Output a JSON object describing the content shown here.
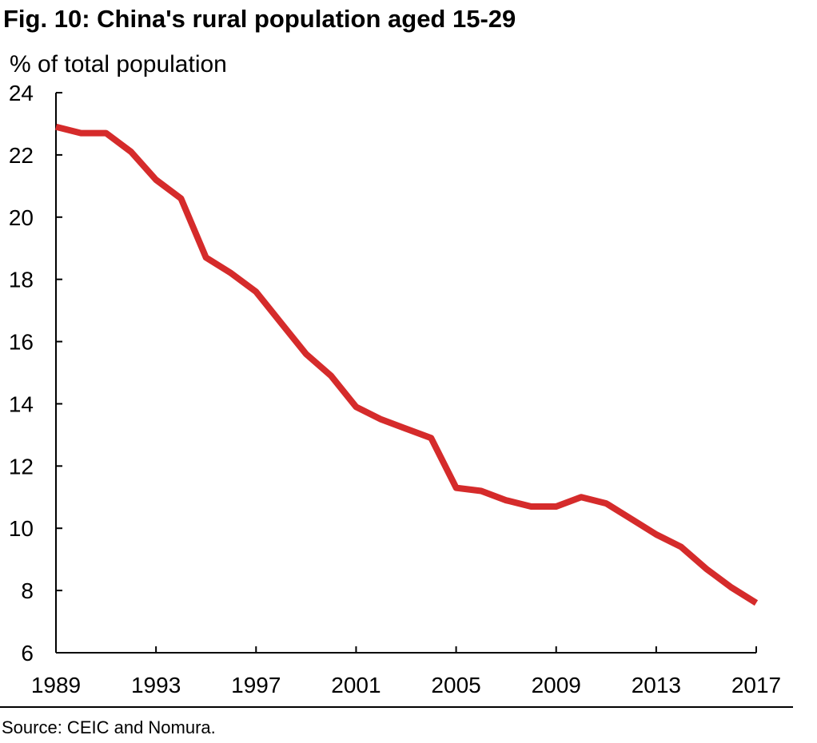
{
  "chart_data": {
    "type": "line",
    "title": "Fig. 10: China's rural population aged 15-29",
    "ylabel": "% of total population",
    "xlabel": "",
    "xlim": [
      1989,
      2017
    ],
    "ylim": [
      6,
      24
    ],
    "y_ticks": [
      6,
      8,
      10,
      12,
      14,
      16,
      18,
      20,
      22,
      24
    ],
    "x_ticks": [
      1989,
      1993,
      1997,
      2001,
      2005,
      2009,
      2013,
      2017
    ],
    "grid": false,
    "series": [
      {
        "color": "#d52b2b",
        "x": [
          1989,
          1990,
          1991,
          1992,
          1993,
          1994,
          1995,
          1996,
          1997,
          1998,
          1999,
          2000,
          2001,
          2002,
          2003,
          2004,
          2005,
          2006,
          2007,
          2008,
          2009,
          2010,
          2011,
          2012,
          2013,
          2014,
          2015,
          2016,
          2017
        ],
        "values": [
          22.9,
          22.7,
          22.7,
          22.1,
          21.2,
          20.6,
          18.7,
          18.2,
          17.6,
          16.6,
          15.6,
          14.9,
          13.9,
          13.5,
          13.2,
          12.9,
          11.3,
          11.2,
          10.9,
          10.7,
          10.7,
          11.0,
          10.8,
          10.3,
          9.8,
          9.4,
          8.7,
          8.1,
          7.6
        ]
      }
    ],
    "source": "Source: CEIC and Nomura."
  }
}
